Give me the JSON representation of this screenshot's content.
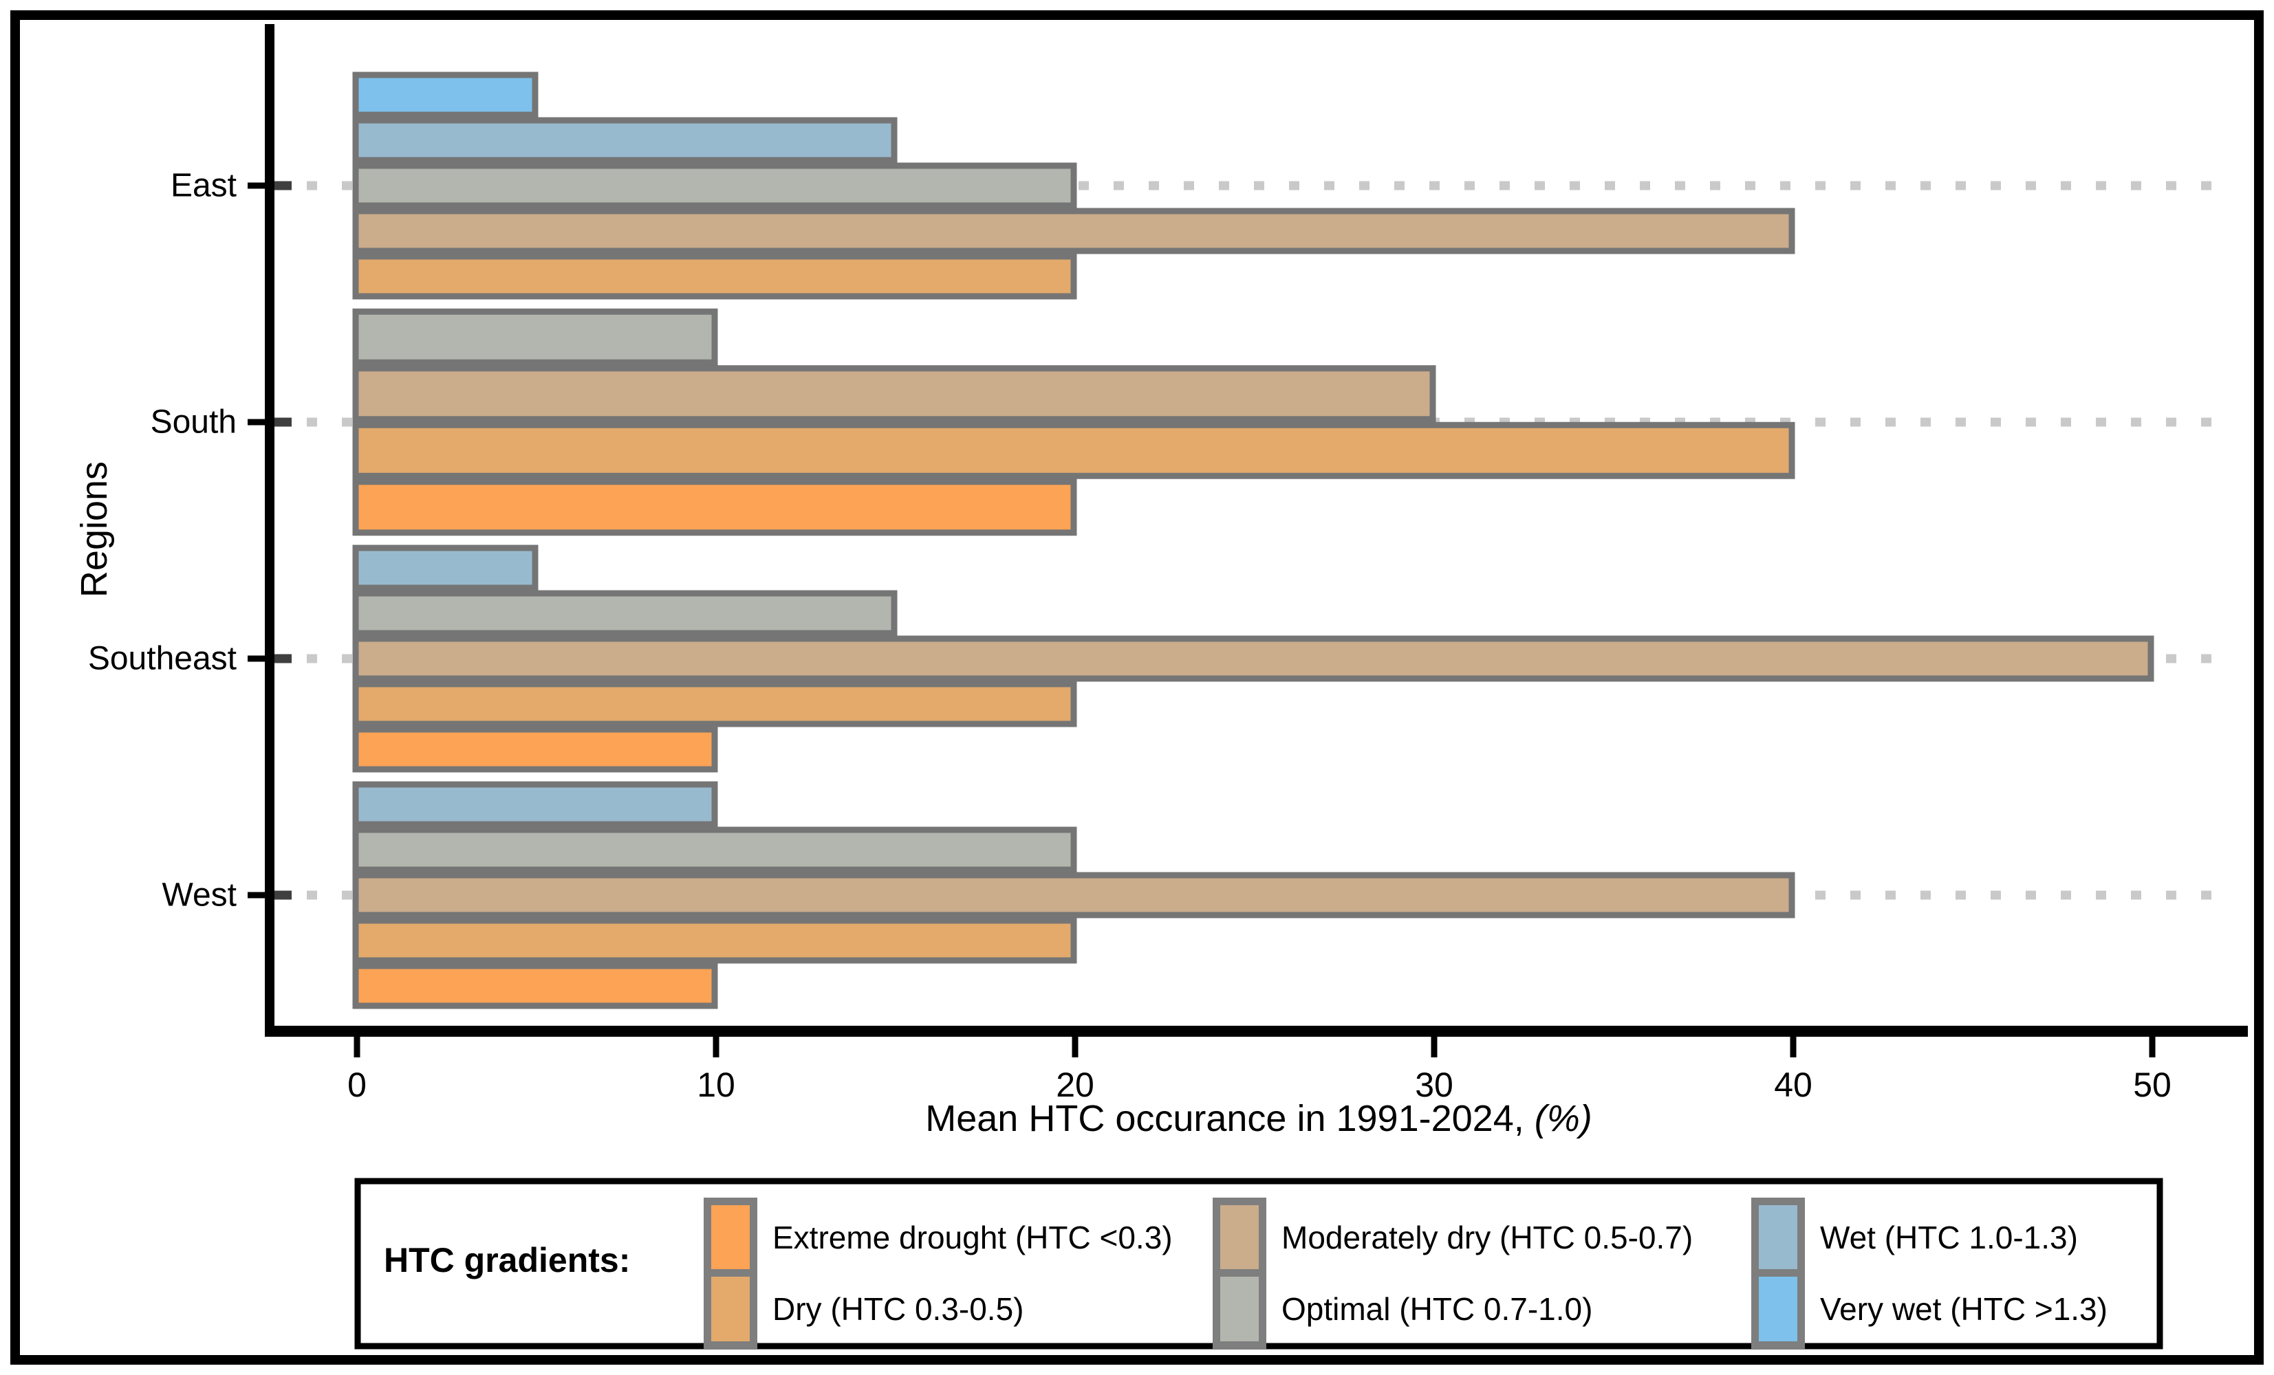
{
  "figure": {
    "background": "#ffffff",
    "outer_border_color": "#000000"
  },
  "x_axis": {
    "title_main": "Mean HTC occurance in 1991-2024, ",
    "title_unit": "(%)",
    "tick_labels": [
      "0",
      "10",
      "20",
      "30",
      "40",
      "50"
    ],
    "tick_values": [
      0,
      10,
      20,
      30,
      40,
      50
    ]
  },
  "y_axis": {
    "title": "Regions",
    "tick_labels": [
      "East",
      "South",
      "Southeast",
      "West"
    ]
  },
  "legend": {
    "title": "HTC gradients:",
    "items": [
      {
        "key": "extreme_drought",
        "label": "Extreme drought (HTC <0.3)"
      },
      {
        "key": "dry",
        "label": "Dry (HTC 0.3-0.5)"
      },
      {
        "key": "moderately_dry",
        "label": "Moderately dry (HTC 0.5-0.7)"
      },
      {
        "key": "optimal",
        "label": "Optimal (HTC 0.7-1.0)"
      },
      {
        "key": "wet",
        "label": "Wet (HTC 1.0-1.3)"
      },
      {
        "key": "very_wet",
        "label": "Very wet (HTC >1.3)"
      }
    ]
  },
  "colors": {
    "extreme_drought": "#FCA355",
    "dry": "#E3AA6C",
    "moderately_dry": "#CBAC8B",
    "optimal": "#B3B6AE",
    "wet": "#98BACF",
    "very_wet": "#7DC1EC",
    "bar_border": "#757575",
    "legend_key_border": "#7E7E7E",
    "grid_dotted": "#C9C9C9",
    "grid_stub": "#3F3F3F",
    "axis": "#000000"
  },
  "chart_data": {
    "type": "bar",
    "orientation": "horizontal",
    "xlabel": "Mean HTC occurance in 1991-2024, (%)",
    "ylabel": "Regions",
    "xlim": [
      0,
      52.5
    ],
    "xticks": [
      0,
      10,
      20,
      30,
      40,
      50
    ],
    "grid": "dotted horizontal line at each region center",
    "legend_position": "bottom box with title",
    "categories": [
      "East",
      "South",
      "Southeast",
      "West"
    ],
    "series": [
      {
        "name": "Extreme drought (HTC <0.3)",
        "key": "extreme_drought",
        "values": [
          null,
          20,
          10,
          10
        ]
      },
      {
        "name": "Dry (HTC 0.3-0.5)",
        "key": "dry",
        "values": [
          20,
          40,
          20,
          20
        ]
      },
      {
        "name": "Moderately dry (HTC 0.5-0.7)",
        "key": "moderately_dry",
        "values": [
          40,
          30,
          50,
          40
        ]
      },
      {
        "name": "Optimal (HTC 0.7-1.0)",
        "key": "optimal",
        "values": [
          20,
          10,
          15,
          20
        ]
      },
      {
        "name": "Wet (HTC 1.0-1.3)",
        "key": "wet",
        "values": [
          15,
          null,
          5,
          10
        ]
      },
      {
        "name": "Very wet (HTC >1.3)",
        "key": "very_wet",
        "values": [
          5,
          null,
          null,
          null
        ]
      }
    ],
    "groups_top_to_bottom": [
      {
        "region": "East",
        "bars": [
          {
            "key": "very_wet",
            "value": 5
          },
          {
            "key": "wet",
            "value": 15
          },
          {
            "key": "optimal",
            "value": 20
          },
          {
            "key": "moderately_dry",
            "value": 40
          },
          {
            "key": "dry",
            "value": 20
          }
        ]
      },
      {
        "region": "South",
        "bars": [
          {
            "key": "optimal",
            "value": 10
          },
          {
            "key": "moderately_dry",
            "value": 30
          },
          {
            "key": "dry",
            "value": 40
          },
          {
            "key": "extreme_drought",
            "value": 20
          }
        ]
      },
      {
        "region": "Southeast",
        "bars": [
          {
            "key": "wet",
            "value": 5
          },
          {
            "key": "optimal",
            "value": 15
          },
          {
            "key": "moderately_dry",
            "value": 50
          },
          {
            "key": "dry",
            "value": 20
          },
          {
            "key": "extreme_drought",
            "value": 10
          }
        ]
      },
      {
        "region": "West",
        "bars": [
          {
            "key": "wet",
            "value": 10
          },
          {
            "key": "optimal",
            "value": 20
          },
          {
            "key": "moderately_dry",
            "value": 40
          },
          {
            "key": "dry",
            "value": 20
          },
          {
            "key": "extreme_drought",
            "value": 10
          }
        ]
      }
    ]
  }
}
